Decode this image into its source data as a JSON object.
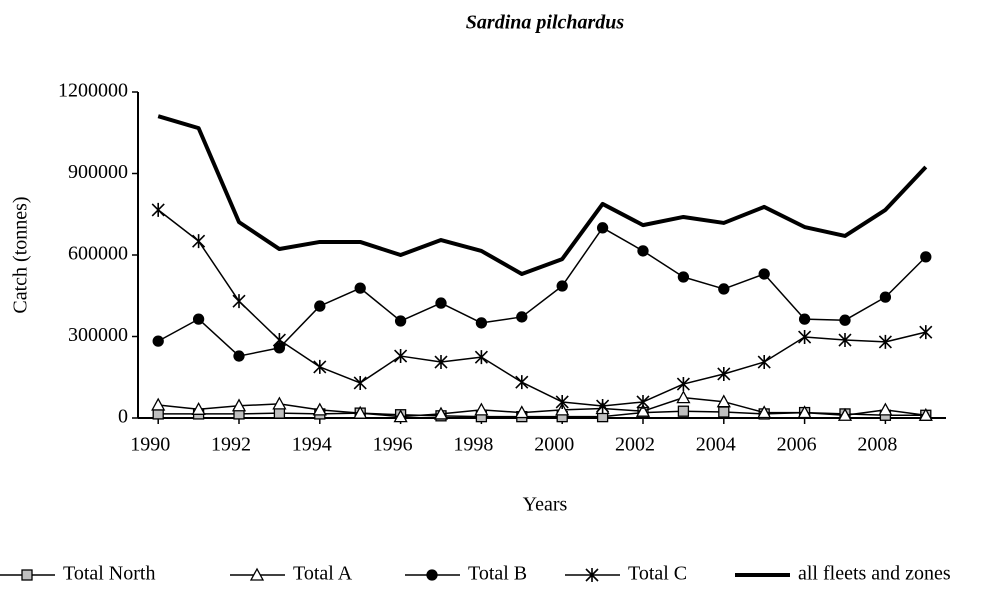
{
  "chart_data": {
    "type": "line",
    "title": "Sardina pilchardus",
    "x_label": "Years",
    "y_label": "Catch (tonnes)",
    "x": [
      1990,
      1991,
      1992,
      1993,
      1994,
      1995,
      1996,
      1997,
      1998,
      1999,
      2000,
      2001,
      2002,
      2003,
      2004,
      2005,
      2006,
      2007,
      2008,
      2009
    ],
    "xlim": [
      1989.5,
      2009.5
    ],
    "xticks": [
      1990,
      1992,
      1994,
      1996,
      1998,
      2000,
      2002,
      2004,
      2006,
      2008
    ],
    "ylim": [
      0,
      1200000
    ],
    "yticks": [
      0,
      300000,
      600000,
      900000,
      1200000
    ],
    "grid": false,
    "legend": "bottom",
    "series": [
      {
        "name": "Total North",
        "color": "#000000",
        "marker": "square",
        "marker_fill": "#bfbfbf",
        "line_width": 1.5,
        "values": [
          15000,
          15000,
          15000,
          18000,
          15000,
          18000,
          12000,
          8000,
          5000,
          5000,
          5000,
          5000,
          20000,
          25000,
          22000,
          15000,
          20000,
          15000,
          10000,
          10000
        ]
      },
      {
        "name": "Total A",
        "color": "#000000",
        "marker": "triangle",
        "marker_fill": "#ffffff",
        "line_width": 1.5,
        "values": [
          48000,
          32000,
          45000,
          52000,
          30000,
          18000,
          5000,
          15000,
          30000,
          20000,
          30000,
          35000,
          25000,
          75000,
          60000,
          20000,
          20000,
          10000,
          30000,
          10000
        ]
      },
      {
        "name": "Total B",
        "color": "#000000",
        "marker": "circle",
        "marker_fill": "#000000",
        "line_width": 1.5,
        "values": [
          283000,
          364000,
          228000,
          258000,
          412000,
          478000,
          357000,
          423000,
          350000,
          372000,
          486000,
          700000,
          615000,
          519000,
          475000,
          530000,
          364000,
          360000,
          445000,
          593000
        ]
      },
      {
        "name": "Total C",
        "color": "#000000",
        "marker": "star",
        "marker_fill": "#000000",
        "line_width": 1.5,
        "values": [
          766000,
          651000,
          430000,
          287000,
          188000,
          129000,
          228000,
          206000,
          224000,
          132000,
          59000,
          44000,
          59000,
          125000,
          162000,
          206000,
          298000,
          287000,
          280000,
          316000
        ]
      },
      {
        "name": "all fleets and zones",
        "color": "#000000",
        "marker": "none",
        "marker_fill": "#000000",
        "line_width": 4,
        "values": [
          1111000,
          1067000,
          721000,
          622000,
          648000,
          648000,
          600000,
          655000,
          615000,
          530000,
          585000,
          788000,
          710000,
          740000,
          718000,
          777000,
          703000,
          670000,
          766000,
          924000
        ]
      }
    ]
  }
}
